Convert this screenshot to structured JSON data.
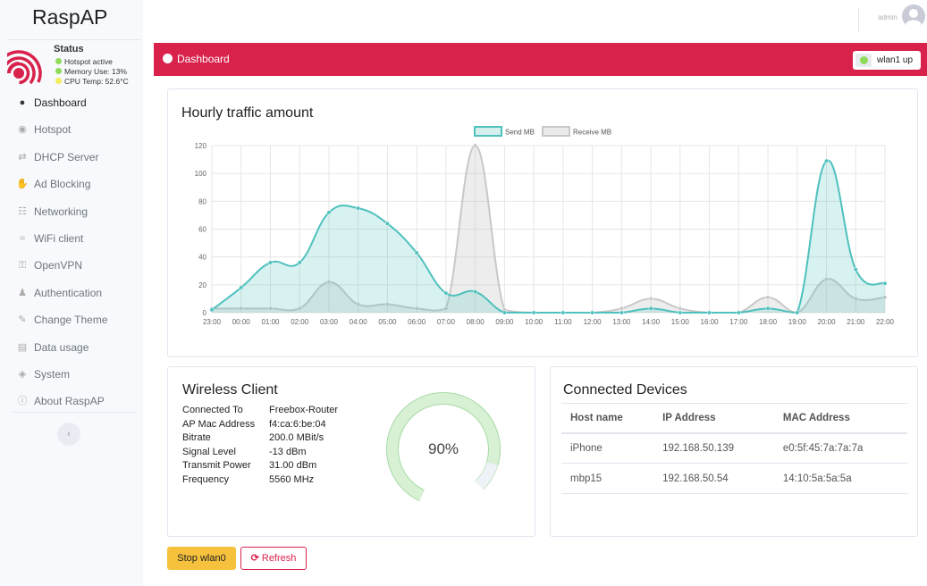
{
  "app": {
    "brand": "RaspAP",
    "username": "admin"
  },
  "status": {
    "title": "Status",
    "lines": [
      {
        "text": "Hotspot active",
        "color": "#8fdc5c"
      },
      {
        "text": "Memory Use: 13%",
        "color": "#8fdc5c"
      },
      {
        "text": "CPU Temp: 52.6°C",
        "color": "#f3ec5b"
      }
    ]
  },
  "sidebar": {
    "items": [
      {
        "label": "Dashboard",
        "icon": "dashboard-icon",
        "active": true
      },
      {
        "label": "Hotspot",
        "icon": "dot-circle-icon"
      },
      {
        "label": "DHCP Server",
        "icon": "exchange-icon"
      },
      {
        "label": "Ad Blocking",
        "icon": "hand-icon"
      },
      {
        "label": "Networking",
        "icon": "network-icon"
      },
      {
        "label": "WiFi client",
        "icon": "wifi-icon"
      },
      {
        "label": "OpenVPN",
        "icon": "key-icon"
      },
      {
        "label": "Authentication",
        "icon": "users-icon"
      },
      {
        "label": "Change Theme",
        "icon": "paint-brush-icon"
      },
      {
        "label": "Data usage",
        "icon": "chart-icon"
      },
      {
        "label": "System",
        "icon": "cube-icon"
      },
      {
        "label": "About RaspAP",
        "icon": "info-icon"
      }
    ],
    "collapse_icon": "chevron-left-icon"
  },
  "header": {
    "title": "Dashboard",
    "badge": "wlan1 up",
    "color": "#d8224c"
  },
  "traffic": {
    "title": "Hourly traffic amount",
    "chart_data": {
      "type": "area",
      "x": [
        "23:00",
        "00:00",
        "01:00",
        "02:00",
        "03:00",
        "04:00",
        "05:00",
        "06:00",
        "07:00",
        "08:00",
        "09:00",
        "10:00",
        "11:00",
        "12:00",
        "13:00",
        "14:00",
        "15:00",
        "16:00",
        "17:00",
        "18:00",
        "19:00",
        "20:00",
        "21:00",
        "22:00"
      ],
      "yticks": [
        0,
        20,
        40,
        60,
        80,
        100,
        120
      ],
      "ylim": [
        0,
        120
      ],
      "series": [
        {
          "name": "Send MB",
          "color": "#4fc1bd",
          "values": [
            2,
            18,
            36,
            36,
            72,
            75,
            64,
            43,
            14,
            15,
            0,
            0,
            0,
            0,
            0,
            3,
            0,
            0,
            0,
            3,
            0,
            109,
            31,
            21
          ]
        },
        {
          "name": "Receive MB",
          "color": "#c8c8c8",
          "values": [
            3,
            3,
            3,
            3,
            22,
            6,
            6,
            3,
            3,
            120,
            2,
            0,
            0,
            0,
            3,
            10,
            3,
            0,
            0,
            11,
            0,
            24,
            10,
            11
          ]
        }
      ],
      "legend": "top-center",
      "grid": true
    }
  },
  "wireless": {
    "title": "Wireless Client",
    "rows": [
      {
        "label": "Connected To",
        "value": "Freebox-Router"
      },
      {
        "label": "AP Mac Address",
        "value": "f4:ca:6:be:04"
      },
      {
        "label": "Bitrate",
        "value": "200.0 MBit/s"
      },
      {
        "label": "Signal Level",
        "value": "-13 dBm"
      },
      {
        "label": "Transmit Power",
        "value": "31.00 dBm"
      },
      {
        "label": "Frequency",
        "value": "5560 MHz"
      }
    ],
    "signal_percent_text": "90%",
    "signal_fraction": 0.9
  },
  "devices": {
    "title": "Connected Devices",
    "columns": [
      "Host name",
      "IP Address",
      "MAC Address"
    ],
    "rows": [
      [
        "iPhone",
        "192.168.50.139",
        "e0:5f:45:7a:7a:7a"
      ],
      [
        "mbp15",
        "192.168.50.54",
        "14:10:5a:5a:5a"
      ]
    ]
  },
  "actions": {
    "stop_label": "Stop wlan0",
    "refresh_label": "Refresh"
  }
}
